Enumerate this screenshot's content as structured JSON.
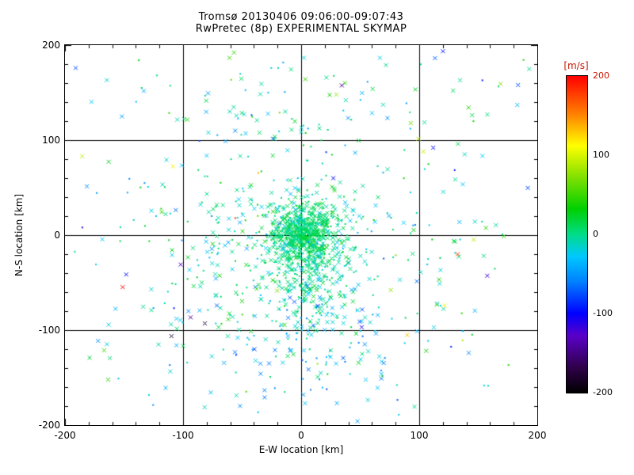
{
  "chart_data": {
    "type": "scatter",
    "title": "Tromsø 20130406 09:06:00-09:07:43",
    "subtitle": "RwPretec (8p) EXPERIMENTAL SKYMAP",
    "xlabel": "E-W location [km]",
    "ylabel": "N-S location [km]",
    "xlim": [
      -200,
      200
    ],
    "ylim": [
      -200,
      200
    ],
    "xticks": [
      -200,
      -100,
      0,
      100,
      200
    ],
    "yticks": [
      -200,
      -100,
      0,
      100,
      200
    ],
    "minor_tick_step": 20,
    "grid_lines": [
      -100,
      0,
      100
    ],
    "background": "#ffffff",
    "axis_color": "#000000",
    "colorbar": {
      "label": "[m/s]",
      "label_color": "#c81400",
      "range": [
        -200,
        200
      ],
      "ticks": [
        200,
        100,
        0,
        -100,
        -200
      ],
      "tick_label_colors": [
        "#c81400",
        "#000000",
        "#000000",
        "#000000",
        "#000000"
      ],
      "stops": [
        {
          "pos": 0.0,
          "color": "#000000"
        },
        {
          "pos": 0.08,
          "color": "#30004a"
        },
        {
          "pos": 0.18,
          "color": "#5a00c8"
        },
        {
          "pos": 0.25,
          "color": "#0000ff"
        },
        {
          "pos": 0.35,
          "color": "#0080ff"
        },
        {
          "pos": 0.43,
          "color": "#00c8ff"
        },
        {
          "pos": 0.5,
          "color": "#00dc87"
        },
        {
          "pos": 0.58,
          "color": "#00d000"
        },
        {
          "pos": 0.68,
          "color": "#80e000"
        },
        {
          "pos": 0.78,
          "color": "#ffff00"
        },
        {
          "pos": 0.88,
          "color": "#ff8000"
        },
        {
          "pos": 1.0,
          "color": "#ff0000"
        }
      ]
    },
    "point_style": {
      "x_size": 2.5,
      "dot_size": 2,
      "line_width": 1
    },
    "points": {
      "seed": 20130406,
      "clusters": [
        {
          "name": "dense-core",
          "cx": 3,
          "cy": 2,
          "sx": 13,
          "sy": 15,
          "count": 600,
          "vel_mean": 8,
          "vel_sd": 10,
          "marker_x_frac": 0.5
        },
        {
          "name": "core-tail",
          "cx": 5,
          "cy": -30,
          "sx": 18,
          "sy": 35,
          "count": 300,
          "vel_mean": 0,
          "vel_sd": 15,
          "marker_x_frac": 0.5
        },
        {
          "name": "inner-halo",
          "cx": -5,
          "cy": -10,
          "sx": 55,
          "sy": 45,
          "count": 420,
          "vel_mean": -5,
          "vel_sd": 22,
          "marker_x_frac": 0.5
        },
        {
          "name": "south-band",
          "cx": 15,
          "cy": -120,
          "sx": 60,
          "sy": 38,
          "count": 130,
          "vel_mean": -30,
          "vel_sd": 25,
          "marker_x_frac": 0.6
        },
        {
          "name": "north-band",
          "cx": 10,
          "cy": 120,
          "sx": 70,
          "sy": 30,
          "count": 70,
          "vel_mean": 0,
          "vel_sd": 25,
          "marker_x_frac": 0.55
        },
        {
          "name": "wide-sparse",
          "uniform": true,
          "x0": -195,
          "x1": 195,
          "y0": -180,
          "y1": 195,
          "count": 150,
          "vel_mean": -10,
          "vel_sd": 40,
          "marker_x_frac": 0.5
        },
        {
          "name": "outliers",
          "uniform": true,
          "x0": -185,
          "x1": 190,
          "y0": -150,
          "y1": 165,
          "count": 26,
          "vel_uniform": [
            -200,
            200
          ],
          "marker_x_frac": 0.8
        }
      ]
    }
  }
}
